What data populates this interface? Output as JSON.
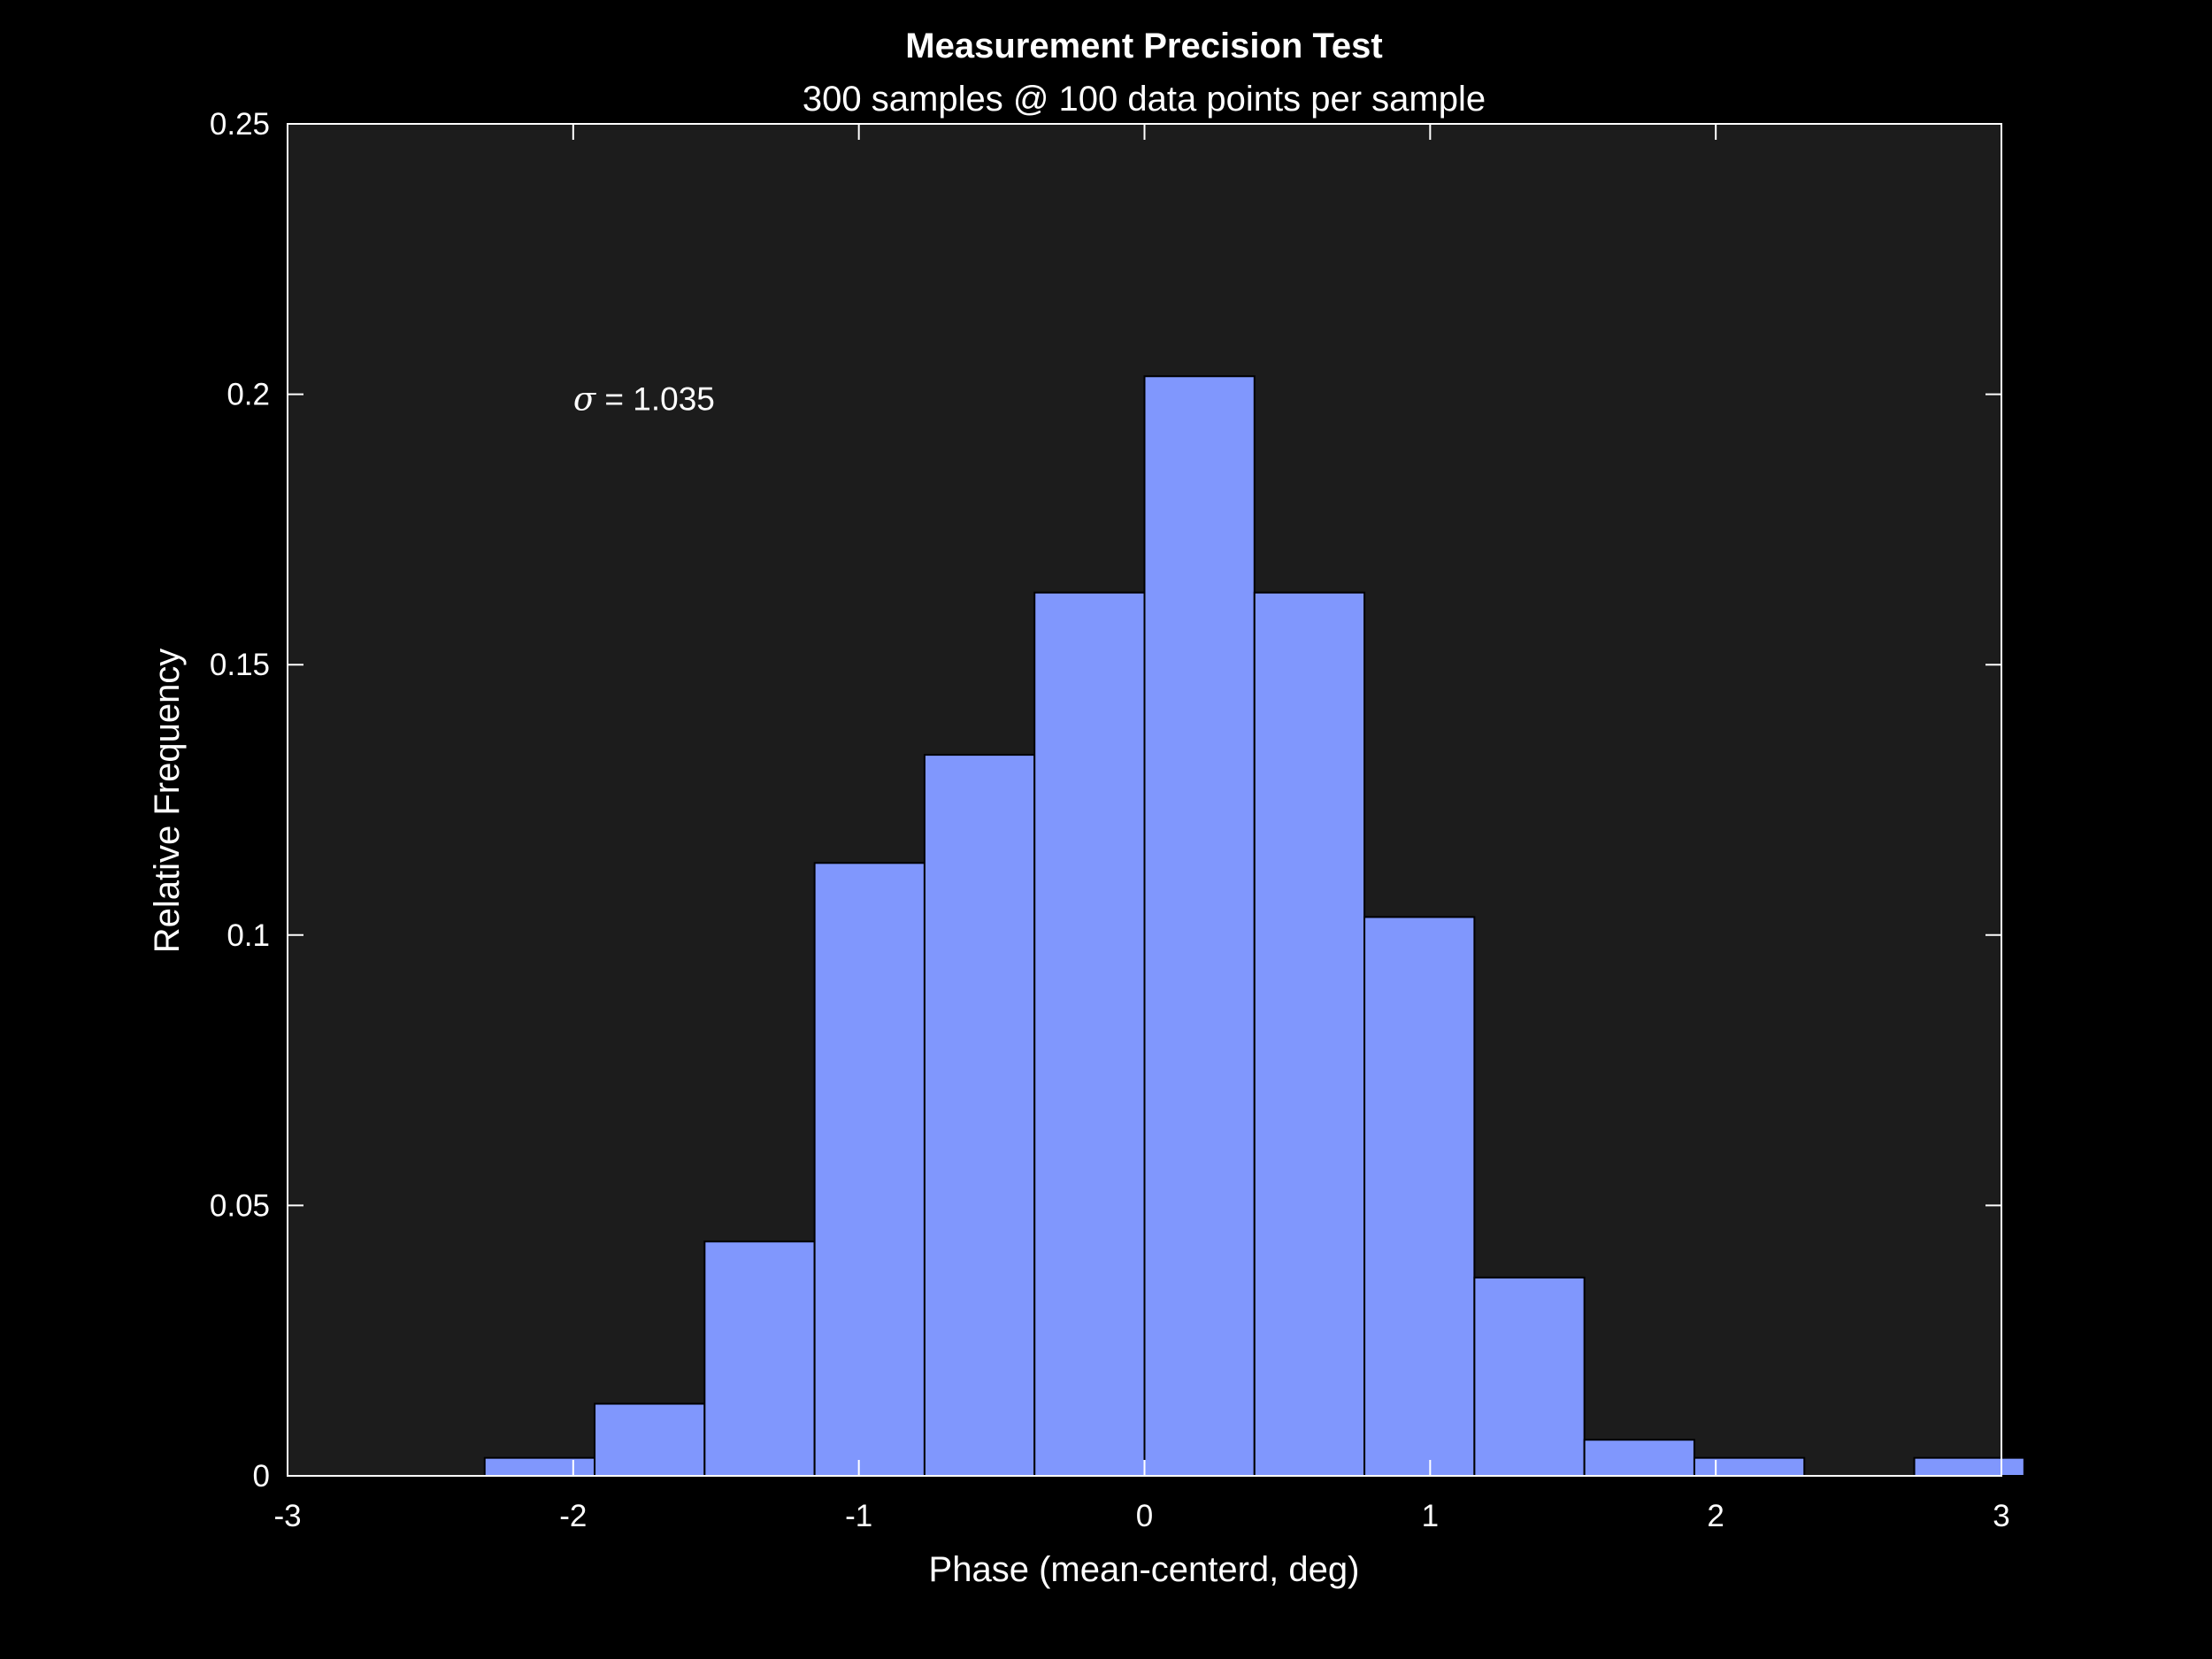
{
  "chart_data": {
    "type": "bar",
    "title": "Measurement Precision Test",
    "subtitle": "300 samples @ 100 data points per sample",
    "xlabel": "Phase (mean-centerd, deg)",
    "ylabel": "Relative Frequency",
    "xlim": [
      -3,
      3
    ],
    "ylim": [
      0,
      0.25
    ],
    "xticks": [
      -3,
      -2,
      -1,
      0,
      1,
      2,
      3
    ],
    "yticks": [
      0,
      0.05,
      0.1,
      0.15,
      0.2,
      0.25
    ],
    "xtick_labels": [
      "-3",
      "-2",
      "-1",
      "0",
      "1",
      "2",
      "3"
    ],
    "ytick_labels": [
      "0",
      "0.05",
      "0.1",
      "0.15",
      "0.2",
      "0.25"
    ],
    "bin_width": 0.385,
    "bins": [
      {
        "x0": -2.31,
        "value": 0.00333
      },
      {
        "x0": -1.925,
        "value": 0.01333
      },
      {
        "x0": -1.54,
        "value": 0.04333
      },
      {
        "x0": -1.155,
        "value": 0.11333
      },
      {
        "x0": -0.77,
        "value": 0.13333
      },
      {
        "x0": -0.385,
        "value": 0.16333
      },
      {
        "x0": 0.0,
        "value": 0.20333
      },
      {
        "x0": 0.385,
        "value": 0.16333
      },
      {
        "x0": 0.77,
        "value": 0.10333
      },
      {
        "x0": 1.155,
        "value": 0.03667
      },
      {
        "x0": 1.54,
        "value": 0.00667
      },
      {
        "x0": 1.925,
        "value": 0.00333
      },
      {
        "x0": 2.695,
        "value": 0.00333
      }
    ],
    "annotation": {
      "symbol": "σ",
      "text": " = 1.035",
      "x": -2.0,
      "y": 0.199
    },
    "colors": {
      "figure_background": "#000000",
      "axes_background": "#1c1c1c",
      "bar_fill": "#8097fd",
      "bar_edge": "#000000",
      "axis_color": "#ffffff",
      "text_color": "#ffffff"
    },
    "grid": false,
    "legend": null
  }
}
